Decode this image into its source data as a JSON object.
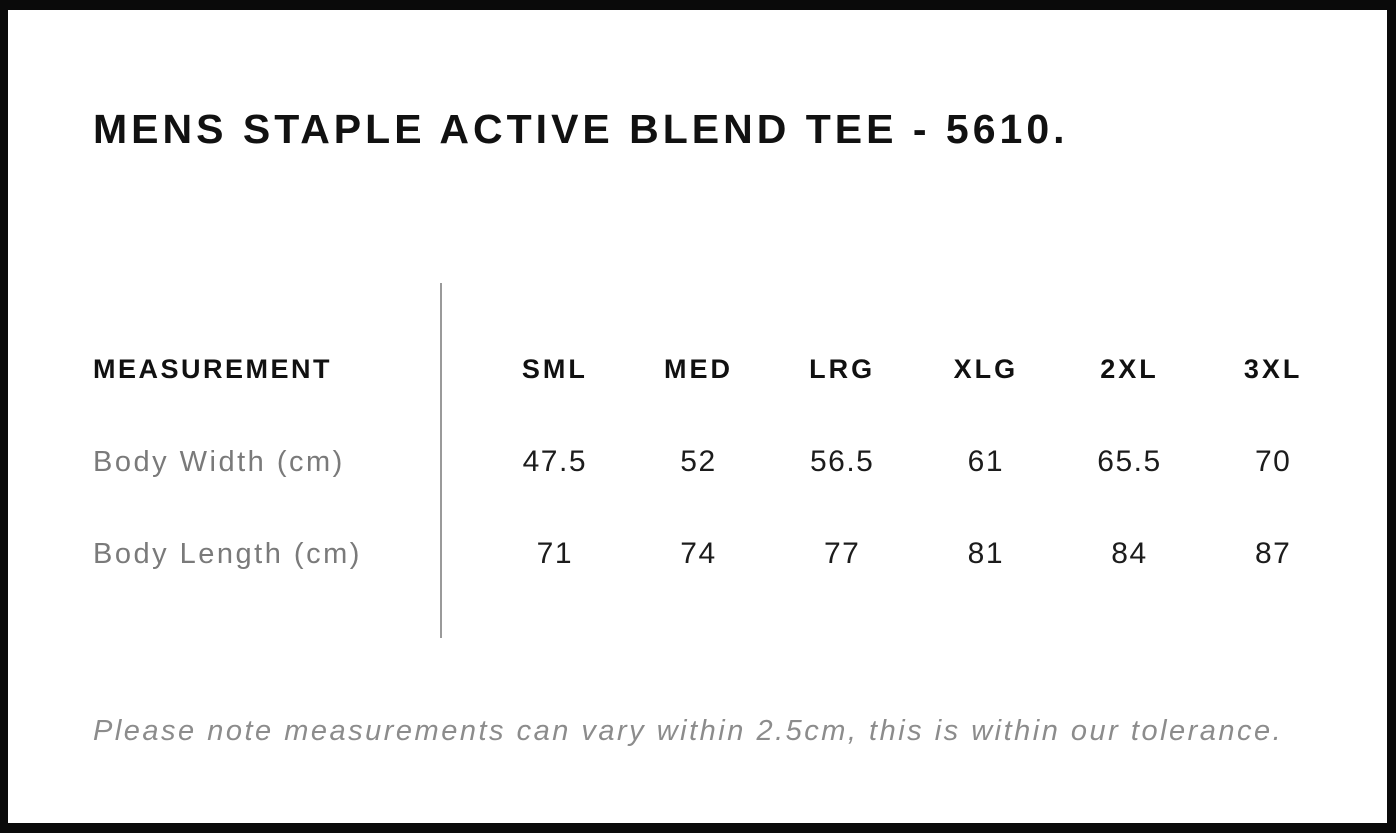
{
  "page": {
    "title": "MENS STAPLE ACTIVE BLEND TEE - 5610.",
    "note": "Please note measurements can vary within 2.5cm, this is within our tolerance."
  },
  "table": {
    "measurement_header": "MEASUREMENT",
    "columns": [
      "SML",
      "MED",
      "LRG",
      "XLG",
      "2XL",
      "3XL"
    ],
    "rows": [
      {
        "label": "Body Width (cm)",
        "values": [
          "47.5",
          "52",
          "56.5",
          "61",
          "65.5",
          "70"
        ]
      },
      {
        "label": "Body Length (cm)",
        "values": [
          "71",
          "74",
          "77",
          "81",
          "84",
          "87"
        ]
      }
    ]
  },
  "colors": {
    "heading_text": "#111111",
    "value_text": "#1c1c1c",
    "label_gray": "#7a7a7a",
    "note_gray": "#8c8c8c",
    "divider_gray": "#9a9a9a",
    "frame_black": "#0a0a0a",
    "background": "#ffffff"
  }
}
